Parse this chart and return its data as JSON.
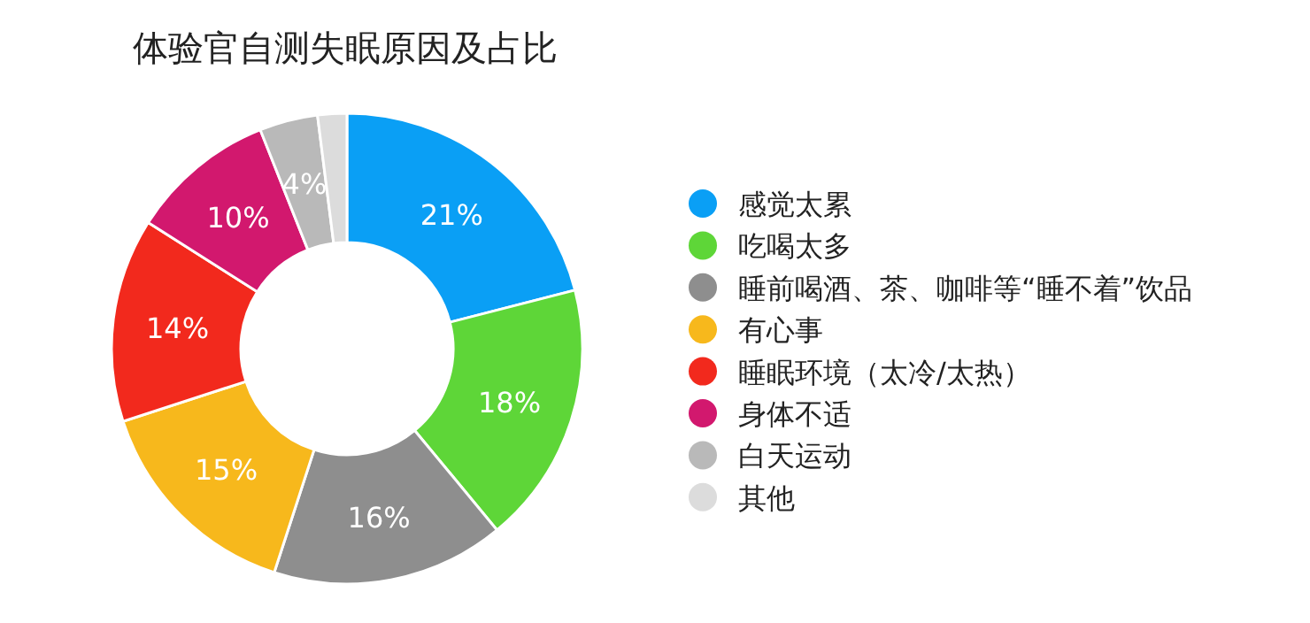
{
  "chart_data": {
    "type": "donut",
    "title": "体验官自测失眠原因及占比",
    "categories": [
      "感觉太累",
      "吃喝太多",
      "睡前喝酒、茶、咖啡等“睡不着”饮品",
      "有心事",
      "睡眠环境（太冷/太热）",
      "身体不适",
      "白天运动",
      "其他"
    ],
    "values": [
      21,
      18,
      16,
      15,
      14,
      10,
      4,
      2
    ],
    "value_labels": [
      "21%",
      "18%",
      "16%",
      "15%",
      "14%",
      "10%",
      "4%",
      null
    ],
    "colors": [
      "#0a9ff5",
      "#5ed638",
      "#8e8e8e",
      "#f7b81c",
      "#f2291d",
      "#d2186e",
      "#b9b9b9",
      "#dcdcdc"
    ],
    "legend": "right"
  }
}
